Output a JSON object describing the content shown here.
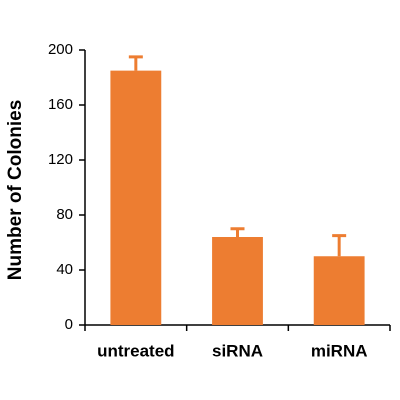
{
  "chart_data": {
    "type": "bar",
    "y_label": "Number of Colonies",
    "categories": [
      "untreated",
      "siRNA",
      "miRNA"
    ],
    "values": [
      185,
      64,
      50
    ],
    "errors": [
      10,
      6,
      15
    ],
    "color": "#ed7d31",
    "ylim": [
      0,
      200
    ],
    "yticks": [
      0,
      40,
      80,
      120,
      160,
      200
    ]
  }
}
